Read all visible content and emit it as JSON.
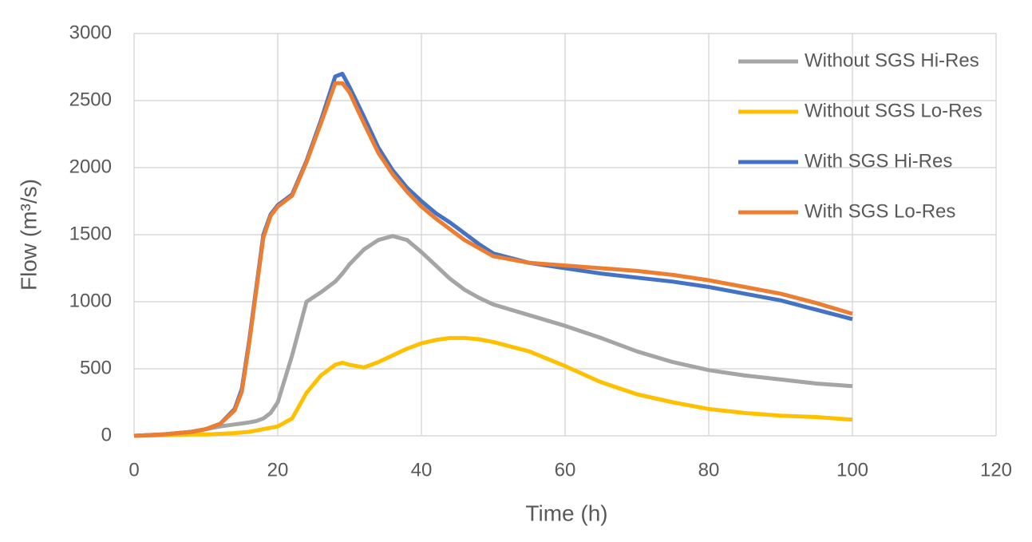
{
  "chart_data": {
    "type": "line",
    "x_label": "Time (h)",
    "y_label": "Flow (m³/s)",
    "x": [
      0,
      4,
      8,
      10,
      12,
      14,
      15,
      16,
      17,
      18,
      19,
      20,
      22,
      24,
      26,
      28,
      29,
      30,
      32,
      34,
      36,
      38,
      40,
      42,
      44,
      46,
      48,
      50,
      55,
      60,
      65,
      70,
      75,
      80,
      85,
      90,
      95,
      100
    ],
    "series": [
      {
        "name": "Without SGS Hi-Res",
        "color": "#a5a5a5",
        "values": [
          0,
          10,
          30,
          50,
          70,
          85,
          92,
          100,
          110,
          130,
          170,
          250,
          600,
          1000,
          1070,
          1150,
          1210,
          1280,
          1390,
          1460,
          1490,
          1460,
          1370,
          1270,
          1170,
          1090,
          1030,
          980,
          900,
          820,
          730,
          630,
          550,
          490,
          450,
          420,
          390,
          370
        ]
      },
      {
        "name": "Without SGS Lo-Res",
        "color": "#ffc000",
        "values": [
          0,
          5,
          10,
          10,
          15,
          20,
          25,
          30,
          40,
          50,
          60,
          70,
          130,
          320,
          450,
          530,
          545,
          530,
          510,
          550,
          600,
          650,
          690,
          715,
          730,
          730,
          720,
          700,
          630,
          520,
          400,
          310,
          250,
          200,
          170,
          150,
          140,
          120
        ]
      },
      {
        "name": "With SGS Hi-Res",
        "color": "#4472c4",
        "values": [
          0,
          10,
          30,
          50,
          90,
          200,
          350,
          700,
          1100,
          1500,
          1650,
          1720,
          1800,
          2050,
          2350,
          2680,
          2700,
          2600,
          2380,
          2150,
          1980,
          1850,
          1750,
          1660,
          1590,
          1510,
          1430,
          1360,
          1290,
          1250,
          1210,
          1180,
          1150,
          1110,
          1060,
          1010,
          940,
          870
        ]
      },
      {
        "name": "With SGS Lo-Res",
        "color": "#ed7d31",
        "values": [
          0,
          10,
          30,
          50,
          90,
          190,
          330,
          680,
          1080,
          1480,
          1640,
          1710,
          1790,
          2040,
          2330,
          2630,
          2630,
          2560,
          2330,
          2110,
          1950,
          1820,
          1710,
          1620,
          1540,
          1460,
          1400,
          1340,
          1290,
          1270,
          1250,
          1230,
          1200,
          1160,
          1110,
          1060,
          990,
          910
        ]
      }
    ],
    "xlim": [
      0,
      120
    ],
    "xticks": [
      0,
      20,
      40,
      60,
      80,
      100,
      120
    ],
    "ylim": [
      0,
      3000
    ],
    "yticks": [
      0,
      500,
      1000,
      1500,
      2000,
      2500,
      3000
    ],
    "grid": true,
    "legend": "right"
  }
}
